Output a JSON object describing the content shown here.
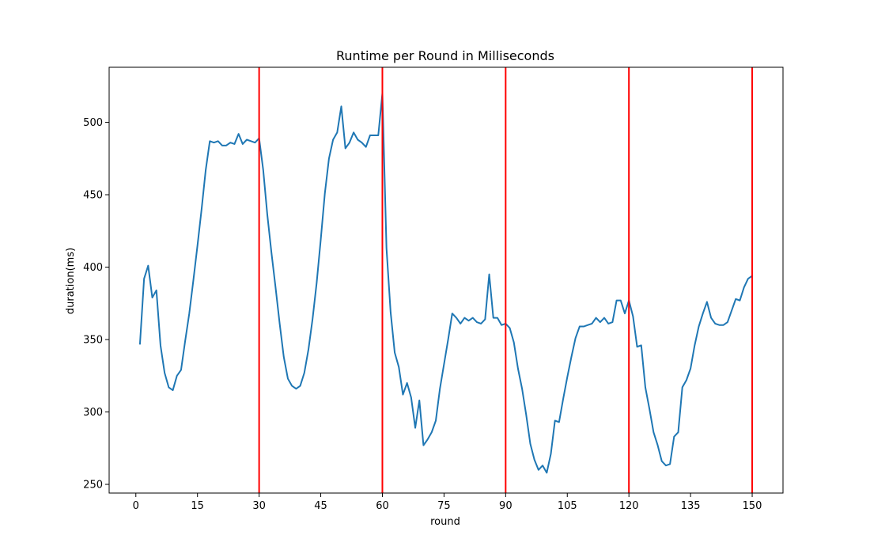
{
  "chart_data": {
    "type": "line",
    "title": "Runtime per Round in Milliseconds",
    "xlabel": "round",
    "ylabel": "duration(ms)",
    "xlim": [
      -6.5,
      157.5
    ],
    "ylim": [
      244,
      538
    ],
    "x_ticks": [
      0,
      15,
      30,
      45,
      60,
      75,
      90,
      105,
      120,
      135,
      150
    ],
    "y_ticks": [
      250,
      300,
      350,
      400,
      450,
      500
    ],
    "grid": false,
    "series": [
      {
        "color": "#1f77b4",
        "x": [
          1,
          2,
          3,
          4,
          5,
          6,
          7,
          8,
          9,
          10,
          11,
          12,
          13,
          14,
          15,
          16,
          17,
          18,
          19,
          20,
          21,
          22,
          23,
          24,
          25,
          26,
          27,
          28,
          29,
          30,
          31,
          32,
          33,
          34,
          35,
          36,
          37,
          38,
          39,
          40,
          41,
          42,
          43,
          44,
          45,
          46,
          47,
          48,
          49,
          50,
          51,
          52,
          53,
          54,
          55,
          56,
          57,
          58,
          59,
          60,
          61,
          62,
          63,
          64,
          65,
          66,
          67,
          68,
          69,
          70,
          71,
          72,
          73,
          74,
          75,
          76,
          77,
          78,
          79,
          80,
          81,
          82,
          83,
          84,
          85,
          86,
          87,
          88,
          89,
          90,
          91,
          92,
          93,
          94,
          95,
          96,
          97,
          98,
          99,
          100,
          101,
          102,
          103,
          104,
          105,
          106,
          107,
          108,
          109,
          110,
          111,
          112,
          113,
          114,
          115,
          116,
          117,
          118,
          119,
          120,
          121,
          122,
          123,
          124,
          125,
          126,
          127,
          128,
          129,
          130,
          131,
          132,
          133,
          134,
          135,
          136,
          137,
          138,
          139,
          140,
          141,
          142,
          143,
          144,
          145,
          146,
          147,
          148,
          149,
          150
        ],
        "values": [
          347,
          392,
          401,
          379,
          384,
          346,
          327,
          317,
          315,
          325,
          329,
          349,
          368,
          391,
          415,
          440,
          467,
          487,
          486,
          487,
          484,
          484,
          486,
          485,
          492,
          485,
          488,
          487,
          486,
          489,
          467,
          436,
          410,
          386,
          361,
          338,
          323,
          318,
          316,
          318,
          327,
          343,
          364,
          389,
          419,
          451,
          475,
          488,
          493,
          511,
          482,
          486,
          493,
          488,
          486,
          483,
          491,
          491,
          491,
          520,
          413,
          369,
          341,
          331,
          312,
          320,
          310,
          289,
          308,
          277,
          281,
          286,
          294,
          316,
          333,
          350,
          368,
          365,
          361,
          365,
          363,
          365,
          362,
          361,
          364,
          395,
          365,
          365,
          360,
          361,
          358,
          348,
          330,
          316,
          298,
          278,
          267,
          260,
          263,
          258,
          271,
          294,
          293,
          309,
          324,
          338,
          351,
          359,
          359,
          360,
          361,
          365,
          362,
          365,
          361,
          362,
          377,
          377,
          368,
          377,
          366,
          345,
          346,
          317,
          302,
          286,
          277,
          266,
          263,
          264,
          283,
          286,
          317,
          322,
          330,
          346,
          359,
          368,
          376,
          365,
          361,
          360,
          360,
          362,
          370,
          378,
          377,
          386,
          392,
          394
        ]
      }
    ],
    "vertical_lines": {
      "color": "#ff0000",
      "x": [
        30,
        60,
        90,
        120,
        150
      ]
    }
  }
}
